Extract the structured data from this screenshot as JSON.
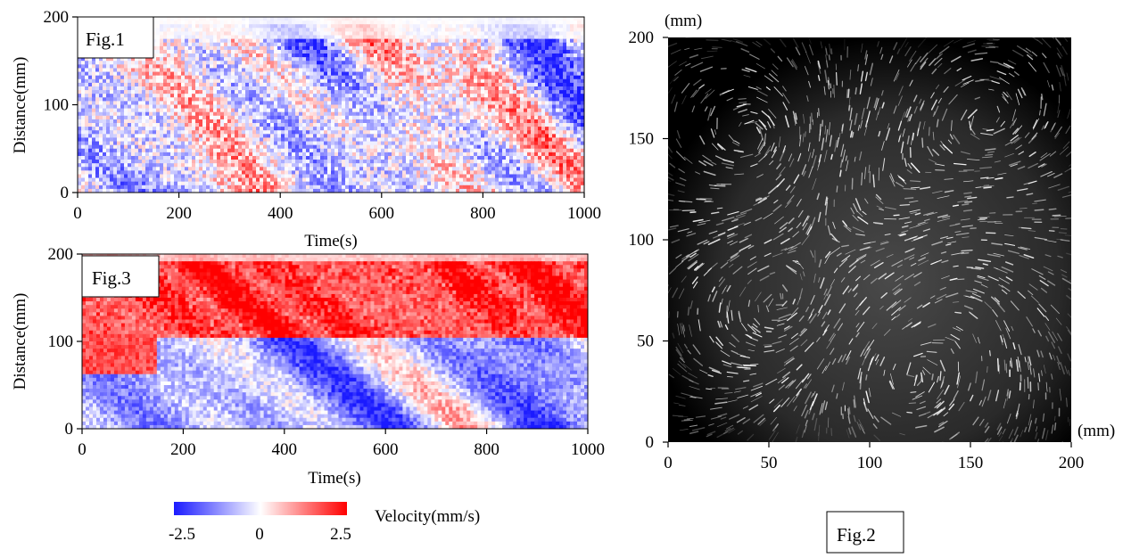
{
  "colors": {
    "negative": "#1a1aff",
    "zero": "#ffffff",
    "positive": "#ff0000",
    "streak_background": "#000000",
    "streak": "#ffffff"
  },
  "chart_data": [
    {
      "id": "fig1",
      "type": "heatmap",
      "panel_label": "Fig.1",
      "xlabel": "Time(s)",
      "ylabel": "Distance(mm)",
      "xlim": [
        0,
        1000
      ],
      "ylim": [
        0,
        200
      ],
      "xticks": [
        "0",
        "200",
        "400",
        "600",
        "800",
        "1000"
      ],
      "yticks": [
        "0",
        "100",
        "200"
      ],
      "value_range": [
        -2.5,
        2.5
      ],
      "description_of_field": "space-time velocity map; mixed blue and red diagonal streaks across full height"
    },
    {
      "id": "fig3",
      "type": "heatmap",
      "panel_label": "Fig.3",
      "xlabel": "Time(s)",
      "ylabel": "Distance(mm)",
      "xlim": [
        0,
        1000
      ],
      "ylim": [
        0,
        200
      ],
      "xticks": [
        "0",
        "200",
        "400",
        "600",
        "800",
        "1000"
      ],
      "yticks": [
        "0",
        "100",
        "200"
      ],
      "value_range": [
        -2.5,
        2.5
      ]
    },
    {
      "id": "fig2",
      "type": "scatter",
      "panel_label": "Fig.2",
      "x_unit": "(mm)",
      "y_unit": "(mm)",
      "xlim": [
        0,
        200
      ],
      "ylim": [
        0,
        200
      ],
      "xticks": [
        "0",
        "50",
        "100",
        "150",
        "200"
      ],
      "yticks": [
        "0",
        "50",
        "100",
        "150",
        "200"
      ]
    }
  ],
  "colorbar": {
    "label": "Velocity(mm/s)",
    "ticks": [
      "-2.5",
      "0",
      "2.5"
    ]
  }
}
